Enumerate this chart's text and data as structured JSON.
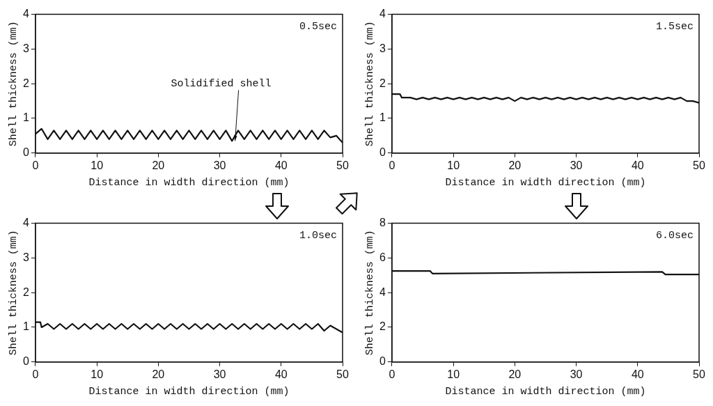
{
  "chart_data": [
    {
      "type": "line",
      "title": "0.5sec",
      "xlabel": "Distance in width direction (mm)",
      "ylabel": "Shell thickness (mm)",
      "xlim": [
        0,
        50
      ],
      "xticks": [
        0,
        10,
        20,
        30,
        40,
        50
      ],
      "ylim": [
        0,
        4
      ],
      "yticks": [
        0,
        1,
        2,
        3,
        4
      ],
      "marker": "none",
      "series": [
        {
          "color": "#111111",
          "x": [
            0,
            1,
            2,
            3,
            4,
            5,
            6,
            7,
            8,
            9,
            10,
            11,
            12,
            13,
            14,
            15,
            16,
            17,
            18,
            19,
            20,
            21,
            22,
            23,
            24,
            25,
            26,
            27,
            28,
            29,
            30,
            31,
            32,
            33,
            34,
            35,
            36,
            37,
            38,
            39,
            40,
            41,
            42,
            43,
            44,
            45,
            46,
            47,
            48,
            49,
            50
          ],
          "values": [
            0.55,
            0.7,
            0.4,
            0.65,
            0.4,
            0.65,
            0.4,
            0.65,
            0.4,
            0.65,
            0.4,
            0.65,
            0.4,
            0.65,
            0.4,
            0.65,
            0.4,
            0.65,
            0.4,
            0.65,
            0.4,
            0.65,
            0.4,
            0.65,
            0.4,
            0.65,
            0.4,
            0.65,
            0.4,
            0.65,
            0.4,
            0.65,
            0.35,
            0.65,
            0.4,
            0.65,
            0.4,
            0.65,
            0.4,
            0.65,
            0.4,
            0.65,
            0.4,
            0.65,
            0.4,
            0.65,
            0.4,
            0.65,
            0.45,
            0.5,
            0.3
          ]
        }
      ],
      "annotations": [
        {
          "text": "Solidified shell",
          "x": 32.5,
          "y": 0.35
        }
      ]
    },
    {
      "type": "line",
      "title": "1.5sec",
      "xlabel": "Distance in width direction (mm)",
      "ylabel": "Shell thickness (mm)",
      "xlim": [
        0,
        50
      ],
      "xticks": [
        0,
        10,
        20,
        30,
        40,
        50
      ],
      "ylim": [
        0,
        4
      ],
      "yticks": [
        0,
        1,
        2,
        3,
        4
      ],
      "marker": "none",
      "series": [
        {
          "color": "#111111",
          "x": [
            0,
            1.3,
            1.6,
            3,
            4,
            5,
            6,
            7,
            8,
            9,
            10,
            11,
            12,
            13,
            14,
            15,
            16,
            17,
            18,
            19,
            20,
            21,
            22,
            23,
            24,
            25,
            26,
            27,
            28,
            29,
            30,
            31,
            32,
            33,
            34,
            35,
            36,
            37,
            38,
            39,
            40,
            41,
            42,
            43,
            44,
            45,
            46,
            47,
            48,
            49,
            50
          ],
          "values": [
            1.7,
            1.7,
            1.6,
            1.6,
            1.55,
            1.6,
            1.55,
            1.6,
            1.55,
            1.6,
            1.55,
            1.6,
            1.55,
            1.6,
            1.55,
            1.6,
            1.55,
            1.6,
            1.55,
            1.6,
            1.5,
            1.6,
            1.55,
            1.6,
            1.55,
            1.6,
            1.55,
            1.6,
            1.55,
            1.6,
            1.55,
            1.6,
            1.55,
            1.6,
            1.55,
            1.6,
            1.55,
            1.6,
            1.55,
            1.6,
            1.55,
            1.6,
            1.55,
            1.6,
            1.55,
            1.6,
            1.55,
            1.6,
            1.5,
            1.5,
            1.45
          ]
        }
      ]
    },
    {
      "type": "line",
      "title": "1.0sec",
      "xlabel": "Distance in width direction (mm)",
      "ylabel": "Shell thickness (mm)",
      "xlim": [
        0,
        50
      ],
      "xticks": [
        0,
        10,
        20,
        30,
        40,
        50
      ],
      "ylim": [
        0,
        4
      ],
      "yticks": [
        0,
        1,
        2,
        3,
        4
      ],
      "marker": "none",
      "series": [
        {
          "color": "#111111",
          "x": [
            0,
            0.8,
            1,
            2,
            3,
            4,
            5,
            6,
            7,
            8,
            9,
            10,
            11,
            12,
            13,
            14,
            15,
            16,
            17,
            18,
            19,
            20,
            21,
            22,
            23,
            24,
            25,
            26,
            27,
            28,
            29,
            30,
            31,
            32,
            33,
            34,
            35,
            36,
            37,
            38,
            39,
            40,
            41,
            42,
            43,
            44,
            45,
            46,
            47,
            48,
            49,
            50
          ],
          "values": [
            1.15,
            1.15,
            1.0,
            1.1,
            0.95,
            1.1,
            0.95,
            1.1,
            0.95,
            1.1,
            0.95,
            1.1,
            0.95,
            1.1,
            0.95,
            1.1,
            0.95,
            1.1,
            0.95,
            1.1,
            0.95,
            1.1,
            0.95,
            1.1,
            0.95,
            1.1,
            0.95,
            1.1,
            0.95,
            1.1,
            0.95,
            1.1,
            0.95,
            1.1,
            0.95,
            1.1,
            0.95,
            1.1,
            0.95,
            1.1,
            0.95,
            1.1,
            0.95,
            1.1,
            0.95,
            1.1,
            0.95,
            1.1,
            0.9,
            1.05,
            0.95,
            0.85
          ]
        }
      ]
    },
    {
      "type": "line",
      "title": "6.0sec",
      "xlabel": "Distance in width direction (mm)",
      "ylabel": "Shell thickness (mm)",
      "xlim": [
        0,
        50
      ],
      "xticks": [
        0,
        10,
        20,
        30,
        40,
        50
      ],
      "ylim": [
        0,
        8
      ],
      "yticks": [
        0,
        2,
        4,
        6,
        8
      ],
      "marker": "none",
      "series": [
        {
          "color": "#111111",
          "x": [
            0,
            6.2,
            6.6,
            44,
            44.5,
            50
          ],
          "values": [
            5.25,
            5.25,
            5.1,
            5.2,
            5.05,
            5.05
          ]
        }
      ]
    }
  ]
}
